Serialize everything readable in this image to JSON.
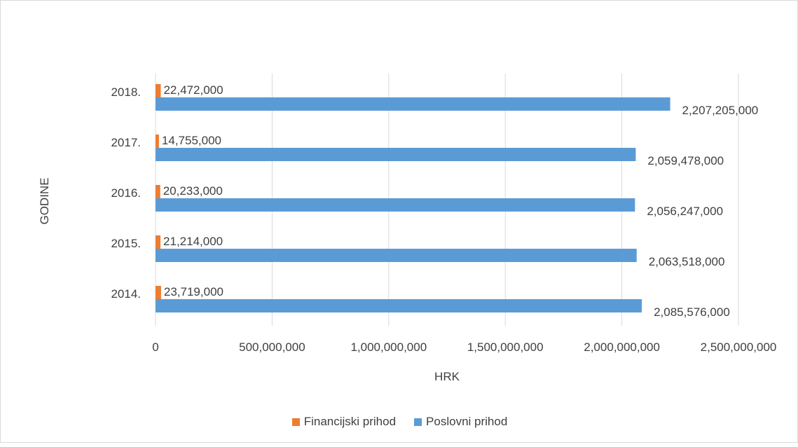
{
  "chart_data": {
    "type": "bar",
    "orientation": "horizontal",
    "categories": [
      "2014.",
      "2015.",
      "2016.",
      "2017.",
      "2018."
    ],
    "series": [
      {
        "name": "Financijski prihod",
        "color": "#ed7d31",
        "values": [
          23719000,
          21214000,
          20233000,
          14755000,
          22472000
        ],
        "labels": [
          "23,719,000",
          "21,214,000",
          "20,233,000",
          "14,755,000",
          "22,472,000"
        ]
      },
      {
        "name": "Poslovni prihod",
        "color": "#5b9bd5",
        "values": [
          2085576000,
          2063518000,
          2056247000,
          2059478000,
          2207205000
        ],
        "labels": [
          "2,085,576,000",
          "2,063,518,000",
          "2,056,247,000",
          "2,059,478,000",
          "2,207,205,000"
        ]
      }
    ],
    "xlabel": "HRK",
    "ylabel": "GODINE",
    "xlim": [
      0,
      2500000000
    ],
    "xticks": [
      0,
      500000000,
      1000000000,
      1500000000,
      2000000000,
      2500000000
    ],
    "xtick_labels": [
      "0",
      "500,000,000",
      "1,000,000,000",
      "1,500,000,000",
      "2,000,000,000",
      "2,500,000,000"
    ],
    "grid": true,
    "legend_position": "bottom"
  }
}
